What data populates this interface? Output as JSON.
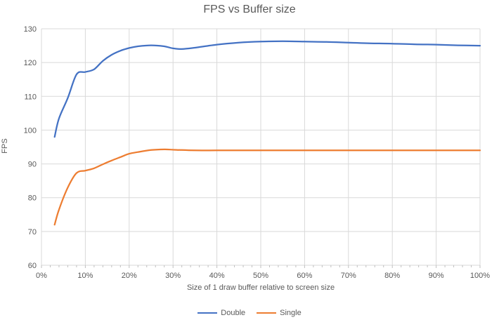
{
  "chart_data": {
    "type": "line",
    "title": "FPS vs Buffer size",
    "xlabel": "Size of 1 draw buffer relative to screen size",
    "ylabel": "FPS",
    "xlim": [
      0,
      100
    ],
    "ylim": [
      60,
      130
    ],
    "y_tick_step": 10,
    "x_tick_step": 10,
    "x_minor_tick_step": 2,
    "x_tick_suffix": "%",
    "y_tick_labels": [
      60,
      70,
      80,
      90,
      100,
      110,
      120,
      130
    ],
    "x_tick_labels": [
      "0%",
      "10%",
      "20%",
      "30%",
      "40%",
      "50%",
      "60%",
      "70%",
      "80%",
      "90%",
      "100%"
    ],
    "grid": true,
    "legend_position": "bottom",
    "colors": {
      "grid": "#D9D9D9",
      "axis": "#BFBFBF",
      "text": "#595959",
      "background": "#FFFFFF"
    },
    "x": [
      3,
      4,
      6,
      8,
      10,
      12,
      14,
      16,
      18,
      20,
      22,
      25,
      28,
      30,
      32,
      35,
      40,
      45,
      50,
      55,
      60,
      65,
      70,
      75,
      80,
      85,
      90,
      95,
      100
    ],
    "series": [
      {
        "name": "Double",
        "color": "#4472C4",
        "y": [
          98,
          103.5,
          109.5,
          116.5,
          117.2,
          118,
          120.5,
          122.3,
          123.5,
          124.3,
          124.8,
          125.1,
          124.8,
          124.2,
          124,
          124.4,
          125.3,
          125.9,
          126.2,
          126.3,
          126.2,
          126.1,
          125.9,
          125.7,
          125.6,
          125.4,
          125.3,
          125.1,
          125
        ]
      },
      {
        "name": "Single",
        "color": "#ED7D31",
        "y": [
          72,
          76.5,
          83,
          87.3,
          88,
          88.7,
          89.9,
          91,
          92,
          93,
          93.5,
          94.1,
          94.3,
          94.2,
          94.1,
          94,
          94,
          94,
          94,
          94,
          94,
          94,
          94,
          94,
          94,
          94,
          94,
          94,
          94
        ]
      }
    ]
  }
}
